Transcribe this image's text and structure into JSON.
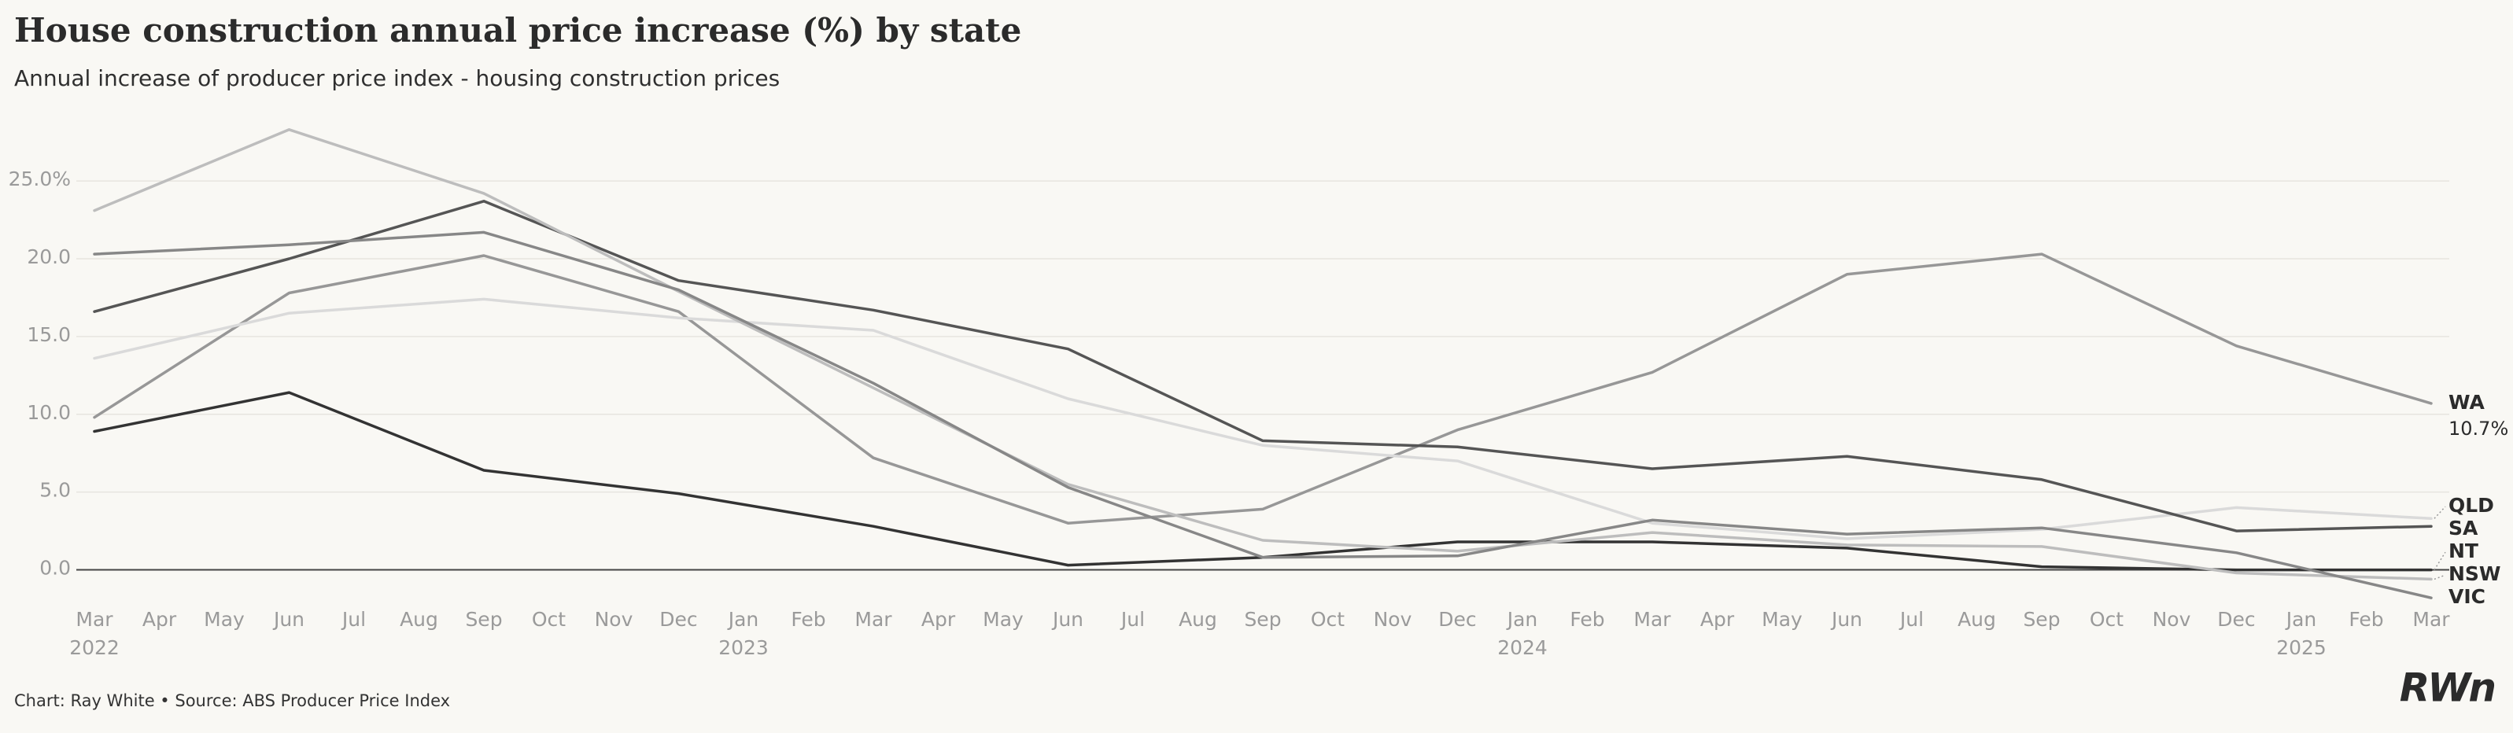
{
  "chart_data": {
    "type": "line",
    "title": "House construction annual price increase (%) by state",
    "subtitle": "Annual increase of producer price index - housing construction prices",
    "source": "Chart: Ray White • Source: ABS Producer Price Index",
    "logo": "RWn",
    "x": [
      "2022-03",
      "2022-06",
      "2022-09",
      "2022-12",
      "2023-03",
      "2023-06",
      "2023-09",
      "2023-12",
      "2024-03",
      "2024-06",
      "2024-09",
      "2024-12",
      "2025-03"
    ],
    "xlim": [
      "2022-03",
      "2025-03"
    ],
    "xticks": [
      {
        "value": "2022-03",
        "label": "Mar"
      },
      {
        "value": "2022-04",
        "label": "Apr"
      },
      {
        "value": "2022-05",
        "label": "May"
      },
      {
        "value": "2022-06",
        "label": "Jun"
      },
      {
        "value": "2022-07",
        "label": "Jul"
      },
      {
        "value": "2022-08",
        "label": "Aug"
      },
      {
        "value": "2022-09",
        "label": "Sep"
      },
      {
        "value": "2022-10",
        "label": "Oct"
      },
      {
        "value": "2022-11",
        "label": "Nov"
      },
      {
        "value": "2022-12",
        "label": "Dec"
      },
      {
        "value": "2023-01",
        "label": "Jan"
      },
      {
        "value": "2023-02",
        "label": "Feb"
      },
      {
        "value": "2023-03",
        "label": "Mar"
      },
      {
        "value": "2023-04",
        "label": "Apr"
      },
      {
        "value": "2023-05",
        "label": "May"
      },
      {
        "value": "2023-06",
        "label": "Jun"
      },
      {
        "value": "2023-07",
        "label": "Jul"
      },
      {
        "value": "2023-08",
        "label": "Aug"
      },
      {
        "value": "2023-09",
        "label": "Sep"
      },
      {
        "value": "2023-10",
        "label": "Oct"
      },
      {
        "value": "2023-11",
        "label": "Nov"
      },
      {
        "value": "2023-12",
        "label": "Dec"
      },
      {
        "value": "2024-01",
        "label": "Jan"
      },
      {
        "value": "2024-02",
        "label": "Feb"
      },
      {
        "value": "2024-03",
        "label": "Mar"
      },
      {
        "value": "2024-04",
        "label": "Apr"
      },
      {
        "value": "2024-05",
        "label": "May"
      },
      {
        "value": "2024-06",
        "label": "Jun"
      },
      {
        "value": "2024-07",
        "label": "Jul"
      },
      {
        "value": "2024-08",
        "label": "Aug"
      },
      {
        "value": "2024-09",
        "label": "Sep"
      },
      {
        "value": "2024-10",
        "label": "Oct"
      },
      {
        "value": "2024-11",
        "label": "Nov"
      },
      {
        "value": "2024-12",
        "label": "Dec"
      },
      {
        "value": "2025-01",
        "label": "Jan"
      },
      {
        "value": "2025-02",
        "label": "Feb"
      },
      {
        "value": "2025-03",
        "label": "Mar"
      }
    ],
    "year_labels": [
      {
        "value": "2022-03",
        "label": "2022"
      },
      {
        "value": "2023-01",
        "label": "2023"
      },
      {
        "value": "2024-01",
        "label": "2024"
      },
      {
        "value": "2025-01",
        "label": "2025"
      }
    ],
    "ylim": [
      -2.5,
      29
    ],
    "yticks": [
      {
        "value": 0,
        "label": "0.0"
      },
      {
        "value": 5,
        "label": "5.0"
      },
      {
        "value": 10,
        "label": "10.0"
      },
      {
        "value": 15,
        "label": "15.0"
      },
      {
        "value": 20,
        "label": "20.0"
      },
      {
        "value": 25,
        "label": "25.0%"
      }
    ],
    "grid": true,
    "series": [
      {
        "name": "WA",
        "color": "#979797",
        "values": [
          9.8,
          17.8,
          20.2,
          16.6,
          7.2,
          3.0,
          3.9,
          9.0,
          12.7,
          19.0,
          20.3,
          14.4,
          10.7
        ],
        "value_labels": [
          null,
          null,
          null,
          null,
          null,
          null,
          null,
          null,
          null,
          null,
          null,
          null,
          "10.7%"
        ]
      },
      {
        "name": "QLD",
        "color": "#dadada",
        "values": [
          13.6,
          16.5,
          17.4,
          16.2,
          15.4,
          11.0,
          8.0,
          7.0,
          3.0,
          2.0,
          2.6,
          4.0,
          3.3
        ]
      },
      {
        "name": "SA",
        "color": "#555555",
        "values": [
          16.6,
          20.0,
          23.7,
          18.6,
          16.7,
          14.2,
          8.3,
          7.9,
          6.5,
          7.3,
          5.8,
          2.5,
          2.8
        ]
      },
      {
        "name": "NT",
        "color": "#333333",
        "values": [
          8.9,
          11.4,
          6.4,
          4.9,
          2.8,
          0.3,
          0.8,
          1.8,
          1.8,
          1.4,
          0.2,
          0.0,
          0.0
        ]
      },
      {
        "name": "NSW",
        "color": "#bdbdbd",
        "values": [
          23.1,
          28.3,
          24.2,
          17.9,
          11.7,
          5.5,
          1.9,
          1.2,
          2.4,
          1.6,
          1.5,
          -0.2,
          -0.6
        ]
      },
      {
        "name": "VIC",
        "color": "#878787",
        "values": [
          20.3,
          20.9,
          21.7,
          18.0,
          12.0,
          5.3,
          0.8,
          0.9,
          3.2,
          2.3,
          2.7,
          1.1,
          -1.8
        ]
      }
    ]
  }
}
